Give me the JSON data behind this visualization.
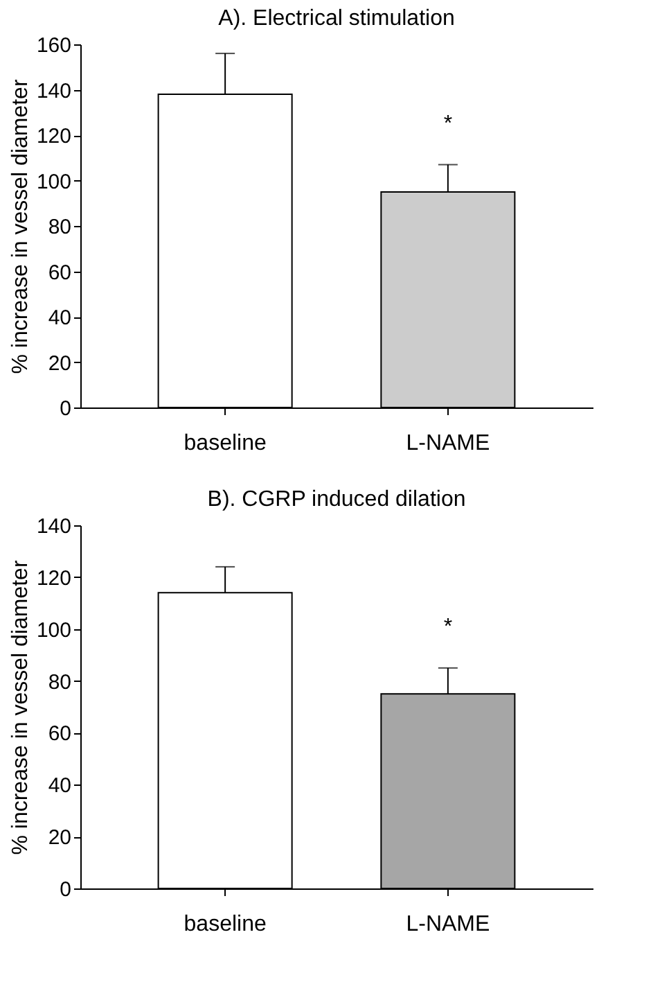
{
  "chart_data": [
    {
      "type": "bar",
      "title": "A). Electrical stimulation",
      "ylabel": "% increase in vessel diameter",
      "categories": [
        "baseline",
        "L-NAME"
      ],
      "values": [
        138,
        95
      ],
      "colors": [
        "#ffffff",
        "#cccccc"
      ],
      "errors": [
        [
          138,
          156
        ],
        [
          95,
          107
        ]
      ],
      "ylim": [
        0,
        160
      ],
      "yticks": [
        0,
        20,
        40,
        60,
        80,
        100,
        120,
        140,
        160
      ],
      "grid": false,
      "annotations": [
        "*"
      ]
    },
    {
      "type": "bar",
      "title": "B). CGRP induced dilation",
      "ylabel": "% increase in vessel diameter",
      "categories": [
        "baseline",
        "L-NAME"
      ],
      "values": [
        114,
        75
      ],
      "colors": [
        "#ffffff",
        "#a6a6a6"
      ],
      "errors": [
        [
          114,
          124
        ],
        [
          75,
          85
        ]
      ],
      "ylim": [
        0,
        140
      ],
      "yticks": [
        0,
        20,
        40,
        60,
        80,
        100,
        120,
        140
      ],
      "grid": false,
      "annotations": [
        "*"
      ]
    }
  ]
}
